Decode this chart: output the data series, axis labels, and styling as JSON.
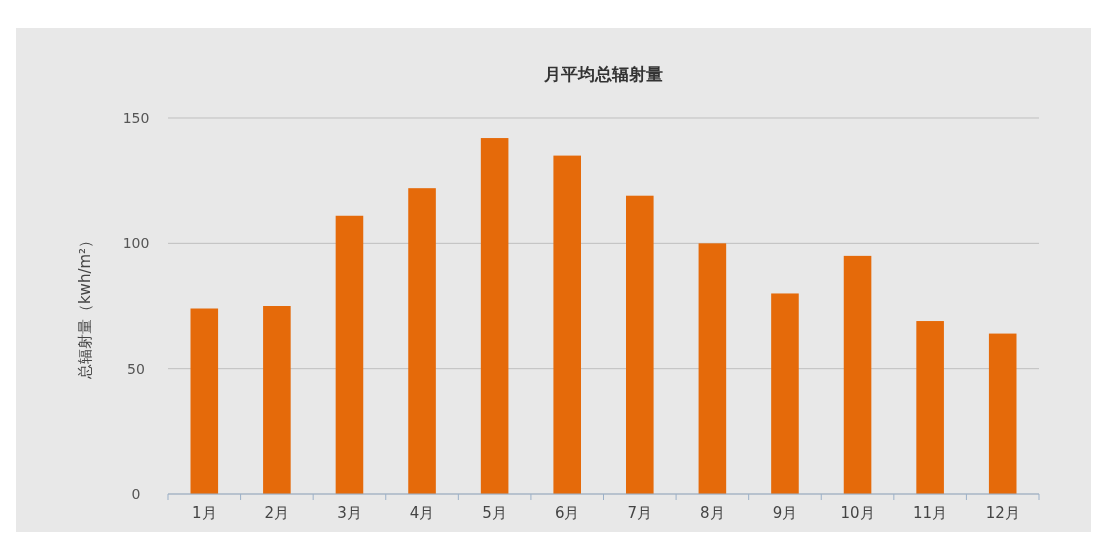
{
  "chart_data": {
    "type": "bar",
    "title": "月平均总辐射量",
    "ylabel": "总辐射量（kwh/m²）",
    "categories": [
      "1月",
      "2月",
      "3月",
      "4月",
      "5月",
      "6月",
      "7月",
      "8月",
      "9月",
      "10月",
      "11月",
      "12月"
    ],
    "values": [
      74,
      75,
      111,
      122,
      142,
      135,
      119,
      100,
      80,
      95,
      69,
      64
    ],
    "color": "#e56a0a",
    "ylim": [
      0,
      150
    ],
    "yticks": [
      0,
      50,
      100,
      150
    ],
    "grid": "y"
  }
}
